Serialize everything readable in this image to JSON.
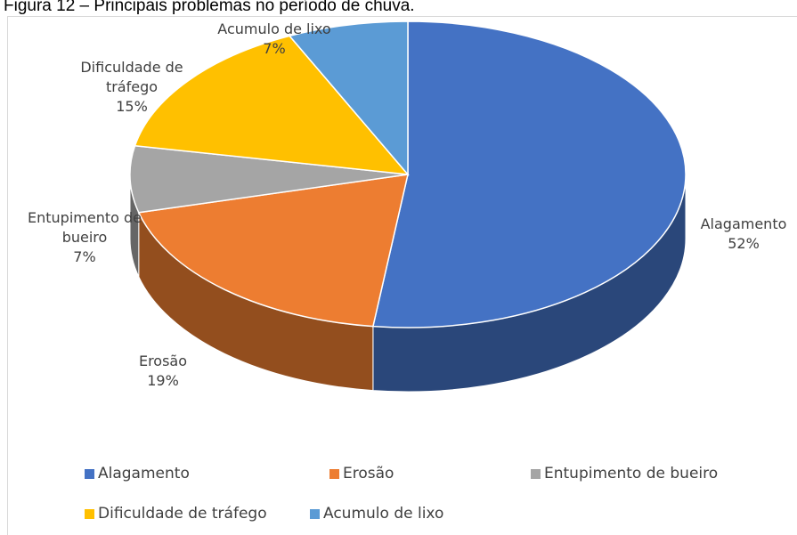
{
  "chart_data": {
    "type": "pie",
    "title": "Figura 12 – Principais problemas no período de chuva.",
    "categories": [
      "Alagamento",
      "Erosão",
      "Entupimento de bueiro",
      "Dificuldade de tráfego",
      "Acumulo de lixo"
    ],
    "values": [
      52,
      19,
      7,
      15,
      7
    ],
    "value_labels": [
      "52%",
      "19%",
      "7%",
      "15%",
      "7%"
    ],
    "colors": [
      "#4472c4",
      "#ed7d31",
      "#a5a5a5",
      "#ffc000",
      "#5b9bd5"
    ],
    "legend": "bottom"
  }
}
